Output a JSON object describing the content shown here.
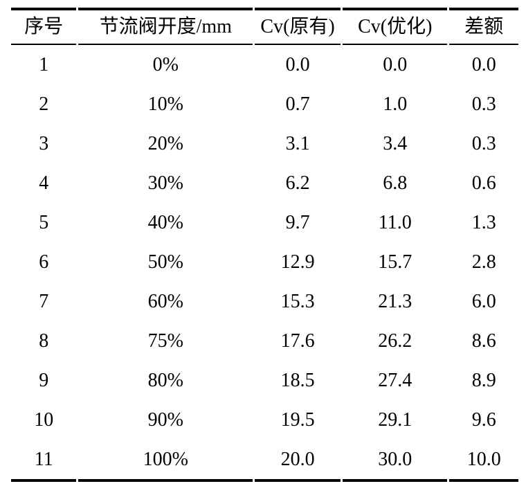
{
  "table": {
    "title_hint": "throttle-valve-cv-comparison-table",
    "columns": [
      "序号",
      "节流阀开度/mm",
      "Cv(原有)",
      "Cv(优化)",
      "差额"
    ],
    "rows": [
      [
        "1",
        "0%",
        "0.0",
        "0.0",
        "0.0"
      ],
      [
        "2",
        "10%",
        "0.7",
        "1.0",
        "0.3"
      ],
      [
        "3",
        "20%",
        "3.1",
        "3.4",
        "0.3"
      ],
      [
        "4",
        "30%",
        "6.2",
        "6.8",
        "0.6"
      ],
      [
        "5",
        "40%",
        "9.7",
        "11.0",
        "1.3"
      ],
      [
        "6",
        "50%",
        "12.9",
        "15.7",
        "2.8"
      ],
      [
        "7",
        "60%",
        "15.3",
        "21.3",
        "6.0"
      ],
      [
        "8",
        "75%",
        "17.6",
        "26.2",
        "8.6"
      ],
      [
        "9",
        "80%",
        "18.5",
        "27.4",
        "8.9"
      ],
      [
        "10",
        "90%",
        "19.5",
        "29.1",
        "9.6"
      ],
      [
        "11",
        "100%",
        "20.0",
        "30.0",
        "10.0"
      ]
    ],
    "colors": {
      "text": "#000000",
      "background": "#ffffff",
      "rule": "#000000"
    }
  }
}
